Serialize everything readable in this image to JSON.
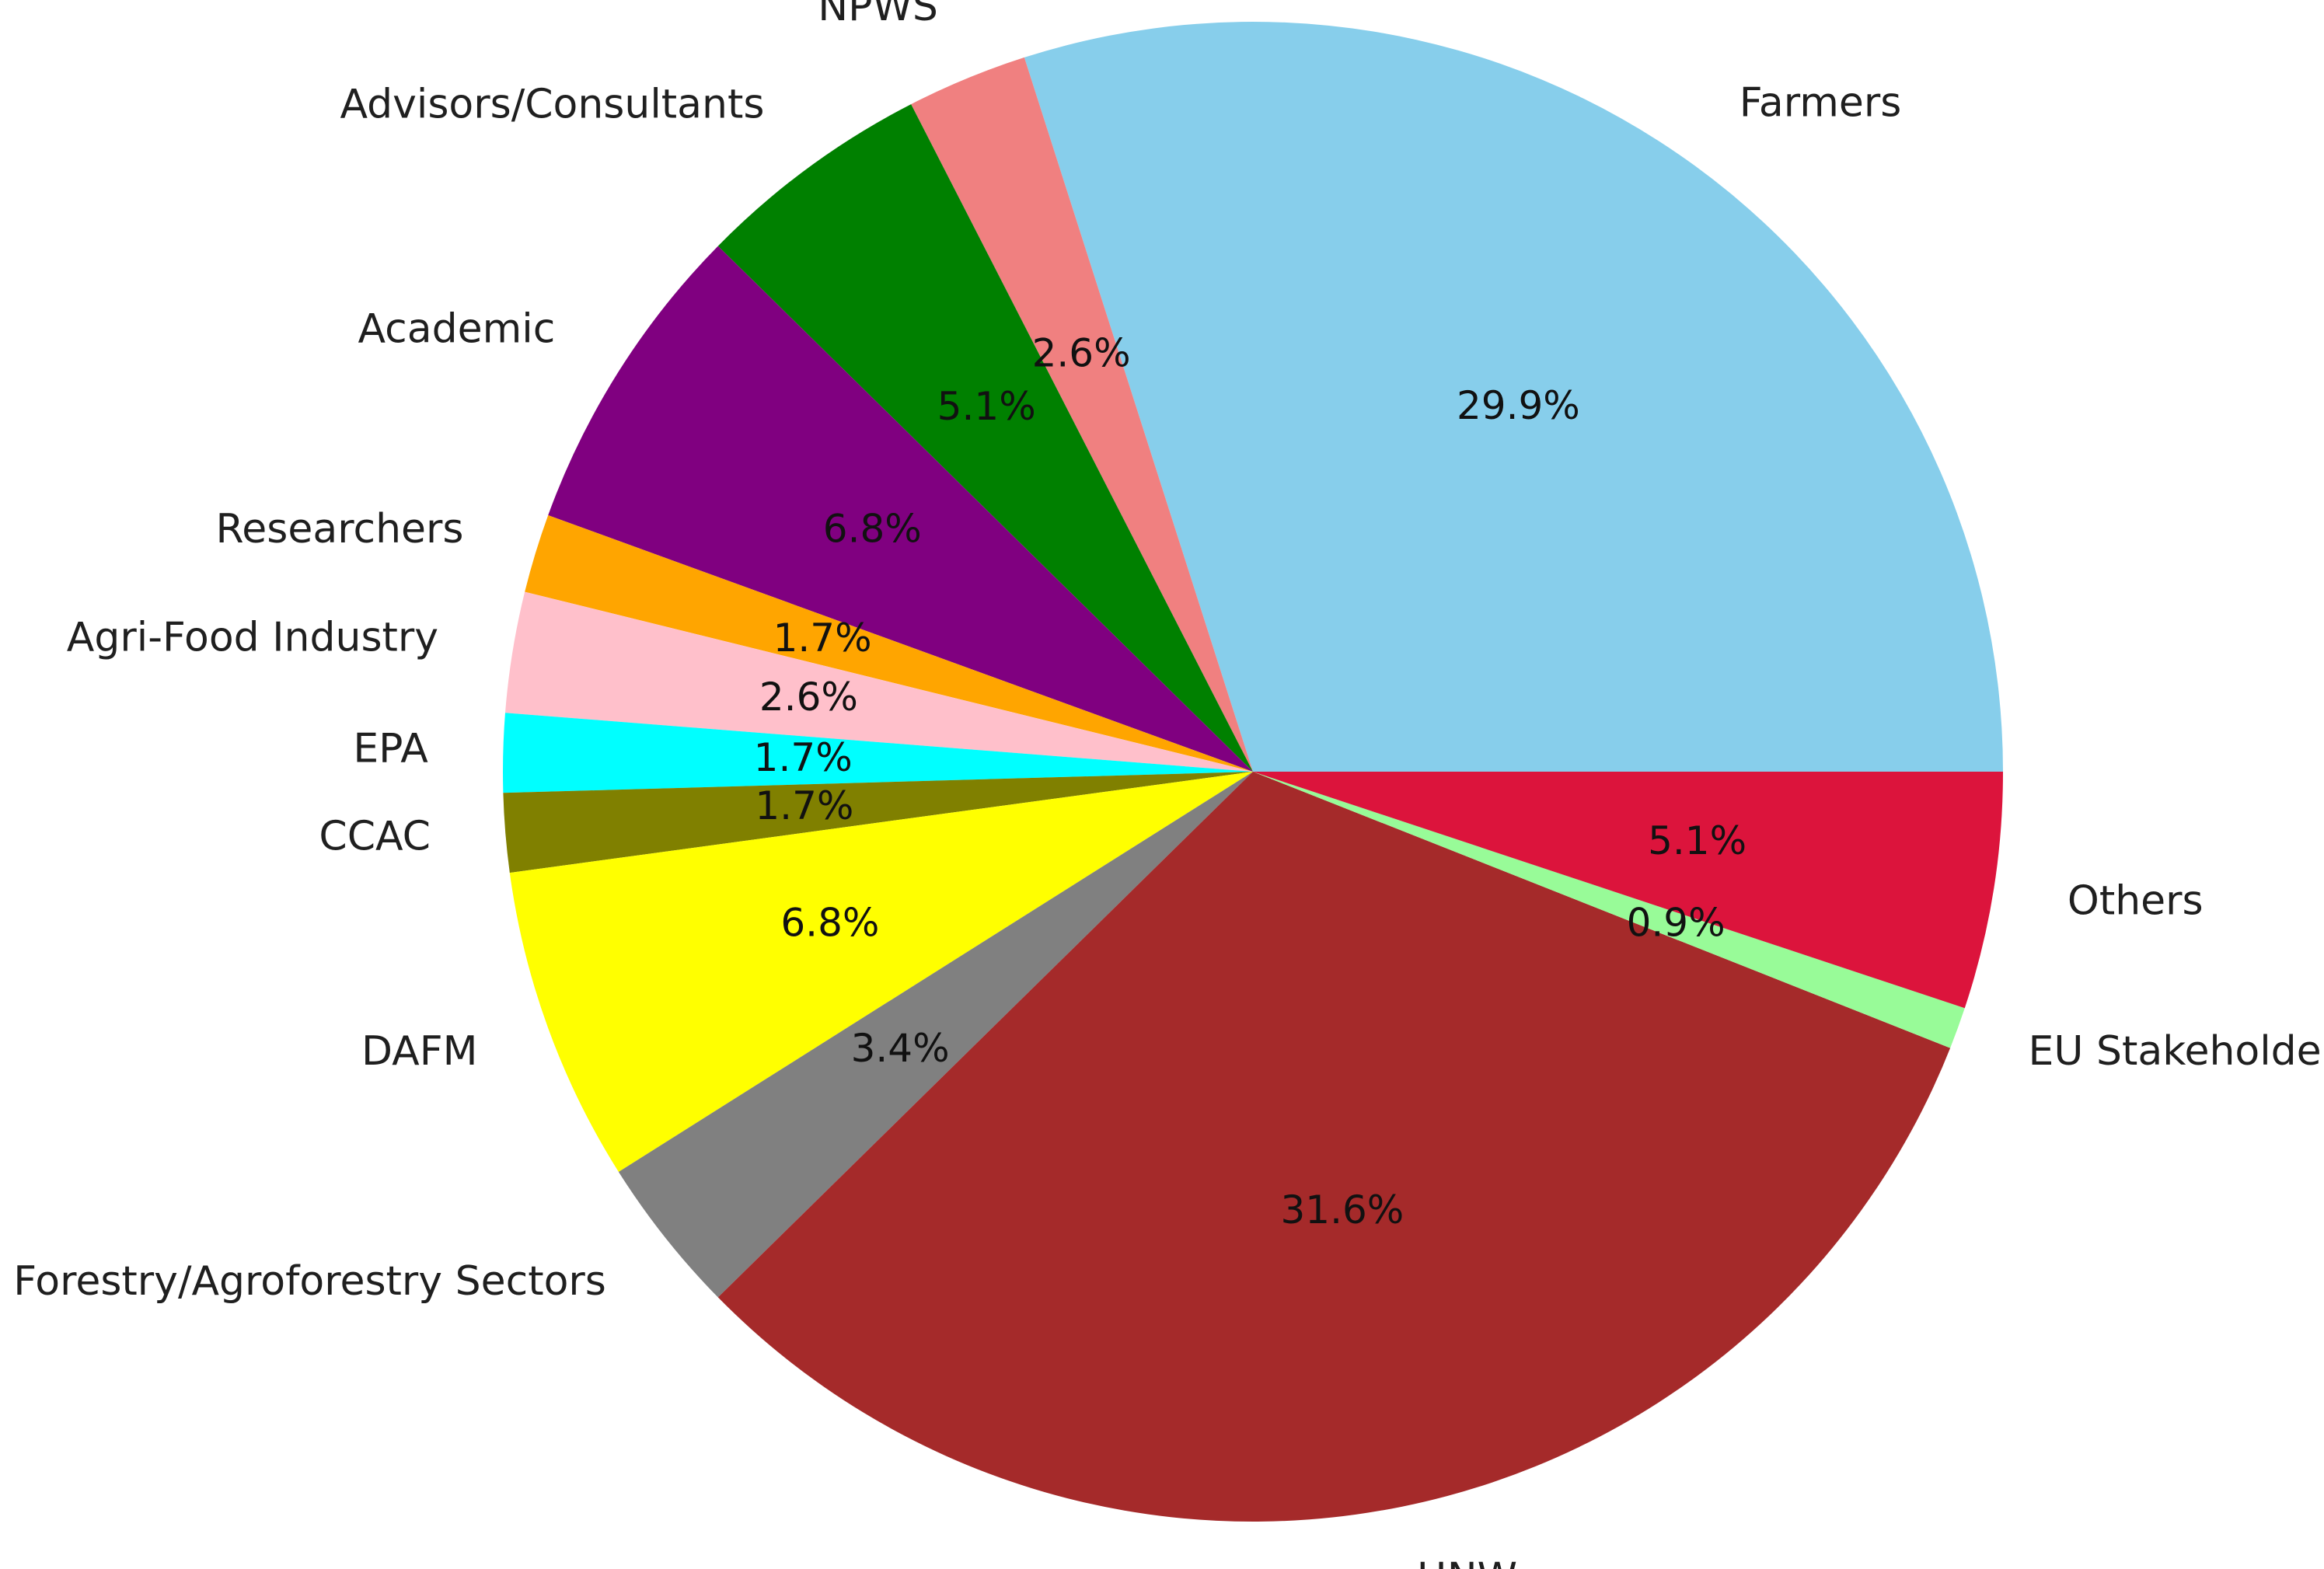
{
  "chart_data": {
    "type": "pie",
    "title": "",
    "start_angle_deg": 0,
    "direction": "counterclockwise",
    "slices": [
      {
        "label": "Farmers",
        "value": 29.9,
        "pct_label": "29.9%",
        "color": "#87CEEB"
      },
      {
        "label": "NPWS",
        "value": 2.6,
        "pct_label": "2.6%",
        "color": "#F08080"
      },
      {
        "label": "Advisors/Consultants",
        "value": 5.1,
        "pct_label": "5.1%",
        "color": "#008000"
      },
      {
        "label": "Academic",
        "value": 6.8,
        "pct_label": "6.8%",
        "color": "#800080"
      },
      {
        "label": "Researchers",
        "value": 1.7,
        "pct_label": "1.7%",
        "color": "#FFA500"
      },
      {
        "label": "Agri-Food Industry",
        "value": 2.6,
        "pct_label": "2.6%",
        "color": "#FFC0CB"
      },
      {
        "label": "EPA",
        "value": 1.7,
        "pct_label": "1.7%",
        "color": "#00FFFF"
      },
      {
        "label": "CCAC",
        "value": 1.7,
        "pct_label": "1.7%",
        "color": "#808000"
      },
      {
        "label": "DAFM",
        "value": 6.8,
        "pct_label": "6.8%",
        "color": "#FFFF00"
      },
      {
        "label": "Forestry/Agroforestry Sectors",
        "value": 3.4,
        "pct_label": "3.4%",
        "color": "#808080"
      },
      {
        "label": "HNW",
        "value": 31.6,
        "pct_label": "31.6%",
        "color": "#A52A2A"
      },
      {
        "label": "EU Stakeholder",
        "value": 0.9,
        "pct_label": "0.9%",
        "color": "#98FB98"
      },
      {
        "label": "Others",
        "value": 5.1,
        "pct_label": "5.1%",
        "color": "#DC143C"
      }
    ]
  }
}
